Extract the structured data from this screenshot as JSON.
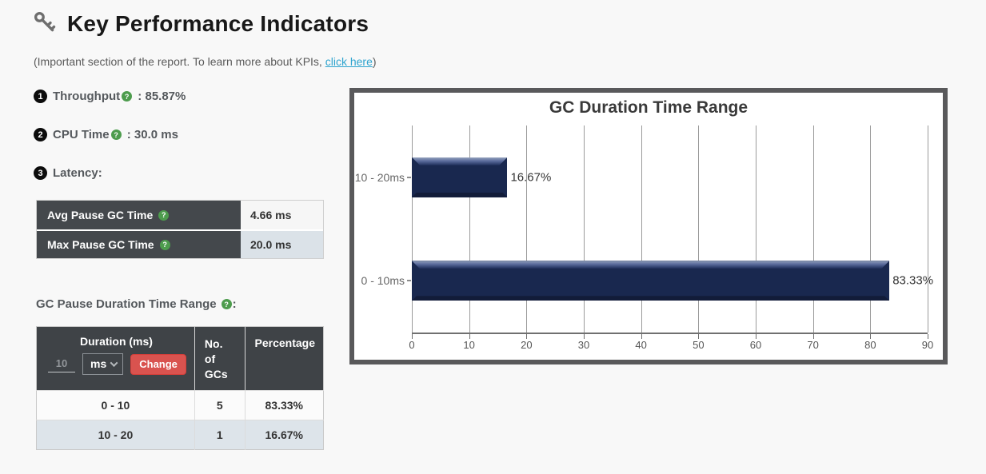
{
  "header": {
    "title": "Key Performance Indicators",
    "subtitle_prefix": "(Important section of the report. To learn more about KPIs, ",
    "link_text": "click here",
    "subtitle_suffix": ")"
  },
  "kpis": [
    {
      "num": "1",
      "label": "Throughput",
      "help": "?",
      "value": " : 85.87%"
    },
    {
      "num": "2",
      "label": "CPU Time",
      "help": "?",
      "value": " : 30.0 ms"
    },
    {
      "num": "3",
      "label": "Latency",
      "value": ":"
    }
  ],
  "latency_table": {
    "rows": [
      {
        "label": "Avg Pause GC Time",
        "help": "?",
        "value": "4.66 ms"
      },
      {
        "label": "Max Pause GC Time",
        "help": "?",
        "value": "20.0 ms"
      }
    ]
  },
  "range_heading": {
    "label": "GC Pause Duration Time Range",
    "help": "?",
    "colon": ":"
  },
  "duration_table": {
    "headers": {
      "duration": "Duration (ms)",
      "count": "No. of GCs",
      "pct": "Percentage"
    },
    "controls": {
      "input_value": "10",
      "unit": "ms",
      "button": "Change"
    },
    "rows": [
      {
        "duration": "0 - 10",
        "count": "5",
        "pct": "83.33%"
      },
      {
        "duration": "10 - 20",
        "count": "1",
        "pct": "16.67%"
      }
    ]
  },
  "chart_data": {
    "type": "bar",
    "orientation": "horizontal",
    "title": "GC Duration Time Range",
    "categories": [
      "10 - 20ms",
      "0 - 10ms"
    ],
    "values": [
      16.67,
      83.33
    ],
    "value_labels": [
      "16.67%",
      "83.33%"
    ],
    "xlim": [
      0,
      90
    ],
    "xticks": [
      0,
      10,
      20,
      30,
      40,
      50,
      60,
      70,
      80,
      90
    ],
    "grid": true,
    "legend": "none",
    "bar_color": "#19284f",
    "frame_color": "#59595b"
  },
  "colors": {
    "table_header_bg": "#44484c",
    "row_alt_bg": "#dde4ea",
    "change_button": "#d9534f",
    "link": "#2fa4cf",
    "help_icon": "#4d9c4d",
    "bar_navy": "#19284f"
  }
}
